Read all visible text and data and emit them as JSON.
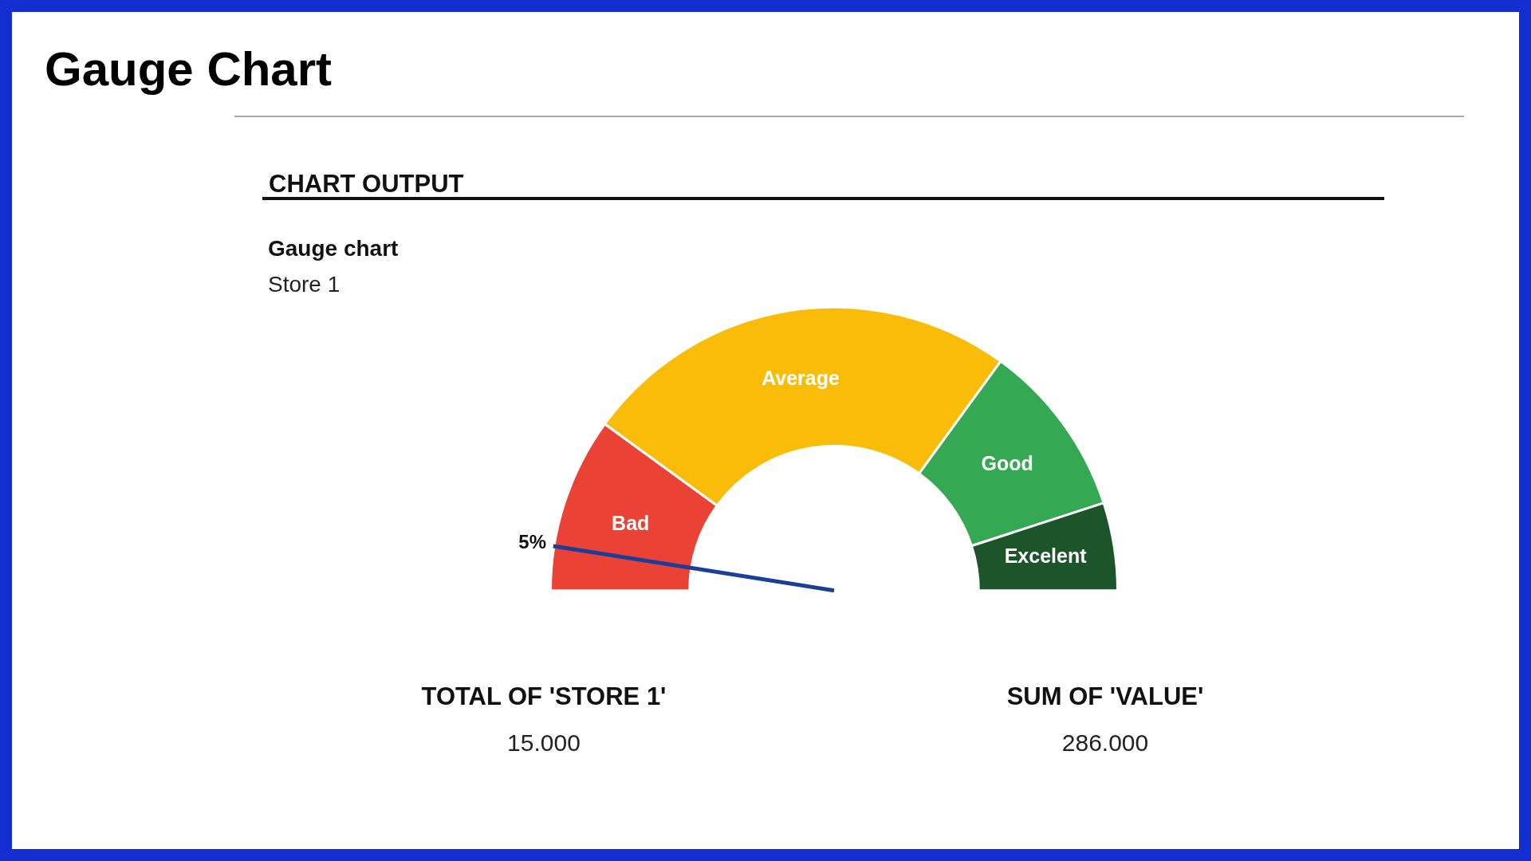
{
  "chart_data": {
    "type": "donut",
    "title": "Gauge chart",
    "subtitle": "Store 1",
    "categories": [
      "Bad",
      "Average",
      "Good",
      "Excelent"
    ],
    "values": [
      20,
      50,
      20,
      10
    ],
    "colors": [
      "#ea4335",
      "#f9bd09",
      "#35a853",
      "#1b5529"
    ],
    "needle": "Bad",
    "annotations": [
      "Gauge Chart",
      "CHART OUTPUT",
      {
        "text": "5%",
        "x": "Bad"
      },
      "TOTAL OF 'STORE 1'",
      "15.000",
      "SUM OF 'VALUE'",
      "286.000"
    ]
  }
}
